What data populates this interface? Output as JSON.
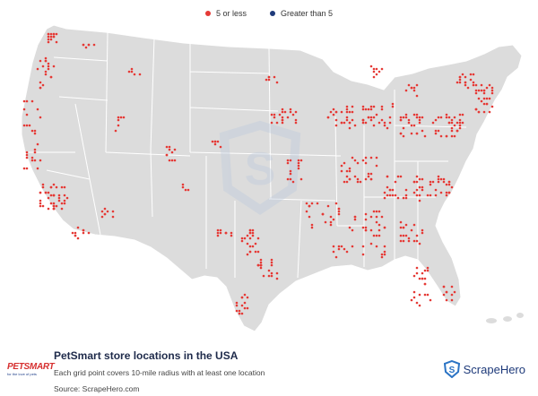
{
  "legend": {
    "items": [
      {
        "label": "5 or less",
        "color": "#e53935"
      },
      {
        "label": "Greater than 5",
        "color": "#1e3a7a"
      }
    ]
  },
  "map": {
    "land_color": "#dcdcdc",
    "border_color": "#ffffff",
    "point_color": "#e53935",
    "watermark_color": "#b9c8dc"
  },
  "footer": {
    "title": "PetSmart store locations in the USA",
    "subtitle": "Each grid point covers 10-mile radius with at least one location",
    "source": "Source: ScrapeHero.com",
    "brand_logo": {
      "word": "PETSMART",
      "tagline": "for the love of pets"
    },
    "scrapehero_logo": {
      "text": "ScrapeHero",
      "icon": "shield-s-icon"
    }
  }
}
